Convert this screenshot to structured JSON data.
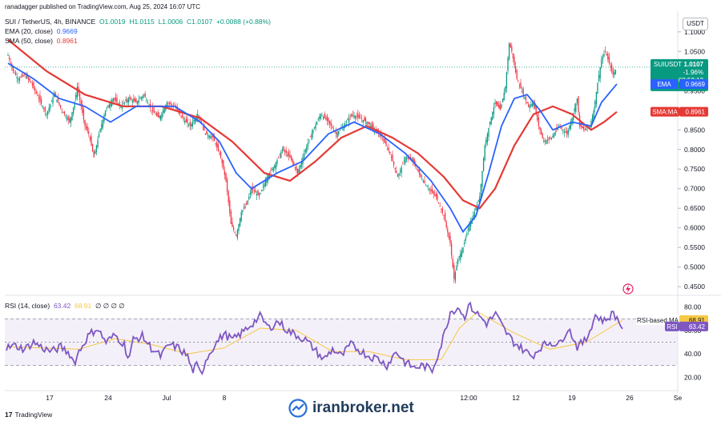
{
  "publisher": "ranadagger published on TradingView.com, Aug 25, 2024 16:07 UTC",
  "symbol_line": {
    "pair": "SUI / TetherUS, 4h, BINANCE",
    "open": "O1.0019",
    "high": "H1.0115",
    "low": "L1.0006",
    "close": "C1.0107",
    "change": "+0.0088 (+0.88%)"
  },
  "ema_line": {
    "label": "EMA (20, close)",
    "value": "0.9669"
  },
  "sma_line": {
    "label": "SMA (50, close)",
    "value": "0.8961"
  },
  "rsi_line": {
    "label": "RSI (14, close)",
    "value1": "63.42",
    "value2": "68.91",
    "extra": "∅ ∅ ∅ ∅"
  },
  "currency_button": "USDT",
  "price_tag": {
    "symbol": "SUIUSDT",
    "price": "1.0107",
    "change": "-1.96%",
    "timer": "03:52:12"
  },
  "ema_tag": {
    "label": "EMA",
    "value": "0.9669"
  },
  "sma_tag": {
    "label": "SMA:MA",
    "value": "0.8961"
  },
  "rsi_ma_tag": {
    "label": "RSI-based MA",
    "value": "68.91"
  },
  "rsi_tag": {
    "label": "RSI",
    "value": "63.42"
  },
  "footer": {
    "site": "iranbroker.net",
    "brand": "TradingView"
  },
  "colors": {
    "up": "#089981",
    "down": "#f23645",
    "ema": "#2962ff",
    "sma": "#e53935",
    "rsi": "#7e57c2",
    "rsi_ma": "#f7c844"
  },
  "chart_data": [
    {
      "type": "candlestick",
      "title": "SUI / TetherUS, 4h, BINANCE",
      "x_tick_labels": [
        "17",
        "24",
        "Jul",
        "8",
        "12:00",
        "12",
        "19",
        "26",
        "Se"
      ],
      "y_tick_labels": [
        "1.1000",
        "1.0500",
        "1.0000",
        "0.9500",
        "0.9000",
        "0.8500",
        "0.8000",
        "0.7500",
        "0.7000",
        "0.6500",
        "0.6000",
        "0.5500",
        "0.5000",
        "0.4500"
      ],
      "ylim": [
        0.43,
        1.12
      ],
      "price_path": [
        [
          0,
          1.04
        ],
        [
          4,
          1.0
        ],
        [
          8,
          0.98
        ],
        [
          13,
          0.99
        ],
        [
          18,
          0.97
        ],
        [
          24,
          0.93
        ],
        [
          30,
          0.89
        ],
        [
          36,
          0.94
        ],
        [
          42,
          0.9
        ],
        [
          48,
          0.87
        ],
        [
          52,
          0.92
        ],
        [
          54,
          0.96
        ],
        [
          57,
          0.91
        ],
        [
          60,
          0.86
        ],
        [
          63,
          0.84
        ],
        [
          67,
          0.78
        ],
        [
          71,
          0.84
        ],
        [
          76,
          0.9
        ],
        [
          82,
          0.93
        ],
        [
          88,
          0.91
        ],
        [
          94,
          0.93
        ],
        [
          100,
          0.92
        ],
        [
          106,
          0.94
        ],
        [
          112,
          0.9
        ],
        [
          118,
          0.88
        ],
        [
          124,
          0.92
        ],
        [
          130,
          0.91
        ],
        [
          136,
          0.88
        ],
        [
          142,
          0.86
        ],
        [
          148,
          0.89
        ],
        [
          154,
          0.84
        ],
        [
          160,
          0.83
        ],
        [
          166,
          0.78
        ],
        [
          170,
          0.72
        ],
        [
          174,
          0.61
        ],
        [
          178,
          0.58
        ],
        [
          182,
          0.64
        ],
        [
          186,
          0.66
        ],
        [
          190,
          0.7
        ],
        [
          196,
          0.68
        ],
        [
          202,
          0.73
        ],
        [
          208,
          0.76
        ],
        [
          214,
          0.8
        ],
        [
          220,
          0.78
        ],
        [
          226,
          0.74
        ],
        [
          232,
          0.8
        ],
        [
          238,
          0.85
        ],
        [
          244,
          0.89
        ],
        [
          250,
          0.87
        ],
        [
          256,
          0.84
        ],
        [
          262,
          0.86
        ],
        [
          268,
          0.89
        ],
        [
          274,
          0.88
        ],
        [
          280,
          0.87
        ],
        [
          286,
          0.85
        ],
        [
          292,
          0.83
        ],
        [
          298,
          0.79
        ],
        [
          304,
          0.73
        ],
        [
          310,
          0.78
        ],
        [
          316,
          0.77
        ],
        [
          322,
          0.73
        ],
        [
          328,
          0.7
        ],
        [
          334,
          0.68
        ],
        [
          340,
          0.63
        ],
        [
          345,
          0.56
        ],
        [
          348,
          0.47
        ],
        [
          351,
          0.52
        ],
        [
          355,
          0.55
        ],
        [
          360,
          0.61
        ],
        [
          364,
          0.64
        ],
        [
          368,
          0.68
        ],
        [
          372,
          0.81
        ],
        [
          376,
          0.87
        ],
        [
          380,
          0.92
        ],
        [
          384,
          0.9
        ],
        [
          388,
          0.96
        ],
        [
          391,
          1.07
        ],
        [
          393,
          1.05
        ],
        [
          397,
          0.98
        ],
        [
          402,
          0.94
        ],
        [
          406,
          0.91
        ],
        [
          410,
          0.92
        ],
        [
          414,
          0.86
        ],
        [
          418,
          0.82
        ],
        [
          424,
          0.83
        ],
        [
          430,
          0.86
        ],
        [
          436,
          0.84
        ],
        [
          440,
          0.88
        ],
        [
          444,
          0.93
        ],
        [
          446,
          0.86
        ],
        [
          450,
          0.85
        ],
        [
          454,
          0.86
        ],
        [
          457,
          0.9
        ],
        [
          460,
          0.97
        ],
        [
          463,
          1.03
        ],
        [
          466,
          1.05
        ],
        [
          469,
          1.02
        ],
        [
          472,
          0.99
        ],
        [
          475,
          1.01
        ]
      ],
      "ema_path": [
        [
          0,
          1.02
        ],
        [
          20,
          0.98
        ],
        [
          40,
          0.93
        ],
        [
          60,
          0.91
        ],
        [
          80,
          0.87
        ],
        [
          100,
          0.91
        ],
        [
          130,
          0.91
        ],
        [
          150,
          0.87
        ],
        [
          165,
          0.82
        ],
        [
          178,
          0.74
        ],
        [
          190,
          0.7
        ],
        [
          210,
          0.74
        ],
        [
          230,
          0.77
        ],
        [
          250,
          0.84
        ],
        [
          270,
          0.87
        ],
        [
          290,
          0.84
        ],
        [
          310,
          0.79
        ],
        [
          330,
          0.72
        ],
        [
          345,
          0.65
        ],
        [
          355,
          0.59
        ],
        [
          365,
          0.63
        ],
        [
          375,
          0.74
        ],
        [
          385,
          0.86
        ],
        [
          395,
          0.93
        ],
        [
          405,
          0.94
        ],
        [
          415,
          0.9
        ],
        [
          425,
          0.85
        ],
        [
          440,
          0.87
        ],
        [
          455,
          0.86
        ],
        [
          463,
          0.92
        ],
        [
          475,
          0.967
        ]
      ],
      "sma_path": [
        [
          0,
          1.08
        ],
        [
          30,
          1.0
        ],
        [
          60,
          0.94
        ],
        [
          90,
          0.91
        ],
        [
          120,
          0.91
        ],
        [
          150,
          0.88
        ],
        [
          175,
          0.82
        ],
        [
          200,
          0.74
        ],
        [
          220,
          0.72
        ],
        [
          240,
          0.77
        ],
        [
          260,
          0.83
        ],
        [
          280,
          0.86
        ],
        [
          300,
          0.83
        ],
        [
          320,
          0.79
        ],
        [
          340,
          0.73
        ],
        [
          355,
          0.67
        ],
        [
          368,
          0.65
        ],
        [
          380,
          0.7
        ],
        [
          395,
          0.81
        ],
        [
          410,
          0.89
        ],
        [
          425,
          0.91
        ],
        [
          440,
          0.89
        ],
        [
          455,
          0.85
        ],
        [
          465,
          0.87
        ],
        [
          475,
          0.896
        ]
      ]
    },
    {
      "type": "line",
      "title": "RSI (14, close)",
      "y_tick_labels": [
        "80.00",
        "60.00",
        "40.00",
        "20.00"
      ],
      "ylim": [
        12,
        88
      ],
      "bands": {
        "upper": 70,
        "middle": 50,
        "lower": 30
      },
      "series": [
        {
          "name": "RSI",
          "values": [
            [
              0,
              45
            ],
            [
              10,
              47
            ],
            [
              20,
              44
            ],
            [
              30,
              50
            ],
            [
              40,
              45
            ],
            [
              50,
              42
            ],
            [
              60,
              46
            ],
            [
              70,
              40
            ],
            [
              75,
              32
            ],
            [
              80,
              42
            ],
            [
              90,
              55
            ],
            [
              100,
              62
            ],
            [
              110,
              50
            ],
            [
              120,
              56
            ],
            [
              130,
              48
            ],
            [
              135,
              35
            ],
            [
              140,
              52
            ],
            [
              150,
              55
            ],
            [
              160,
              45
            ],
            [
              170,
              38
            ],
            [
              180,
              48
            ],
            [
              190,
              45
            ],
            [
              200,
              38
            ],
            [
              205,
              25
            ],
            [
              210,
              30
            ],
            [
              215,
              22
            ],
            [
              220,
              35
            ],
            [
              230,
              48
            ],
            [
              240,
              57
            ],
            [
              250,
              52
            ],
            [
              260,
              58
            ],
            [
              270,
              65
            ],
            [
              280,
              72
            ],
            [
              290,
              62
            ],
            [
              300,
              68
            ],
            [
              310,
              60
            ],
            [
              320,
              56
            ],
            [
              330,
              52
            ],
            [
              340,
              44
            ],
            [
              350,
              35
            ],
            [
              360,
              44
            ],
            [
              370,
              38
            ],
            [
              380,
              48
            ],
            [
              390,
              43
            ],
            [
              400,
              38
            ],
            [
              410,
              36
            ],
            [
              420,
              30
            ],
            [
              430,
              42
            ],
            [
              440,
              33
            ],
            [
              450,
              28
            ],
            [
              460,
              30
            ],
            [
              470,
              26
            ],
            [
              480,
              48
            ],
            [
              490,
              76
            ],
            [
              500,
              80
            ],
            [
              505,
              70
            ],
            [
              510,
              82
            ],
            [
              520,
              74
            ],
            [
              530,
              66
            ],
            [
              540,
              74
            ],
            [
              550,
              60
            ],
            [
              560,
              50
            ],
            [
              570,
              44
            ],
            [
              580,
              38
            ],
            [
              590,
              46
            ],
            [
              600,
              50
            ],
            [
              610,
              48
            ],
            [
              620,
              62
            ],
            [
              625,
              55
            ],
            [
              630,
              46
            ],
            [
              640,
              52
            ],
            [
              650,
              73
            ],
            [
              660,
              68
            ],
            [
              670,
              75
            ],
            [
              680,
              63
            ]
          ]
        },
        {
          "name": "RSI-based MA",
          "values": [
            [
              0,
              46
            ],
            [
              40,
              45
            ],
            [
              80,
              44
            ],
            [
              120,
              53
            ],
            [
              160,
              48
            ],
            [
              200,
              40
            ],
            [
              240,
              45
            ],
            [
              280,
              62
            ],
            [
              320,
              60
            ],
            [
              360,
              42
            ],
            [
              400,
              42
            ],
            [
              440,
              35
            ],
            [
              480,
              35
            ],
            [
              500,
              62
            ],
            [
              520,
              76
            ],
            [
              560,
              58
            ],
            [
              600,
              44
            ],
            [
              640,
              50
            ],
            [
              680,
              68.91
            ]
          ]
        }
      ]
    }
  ]
}
